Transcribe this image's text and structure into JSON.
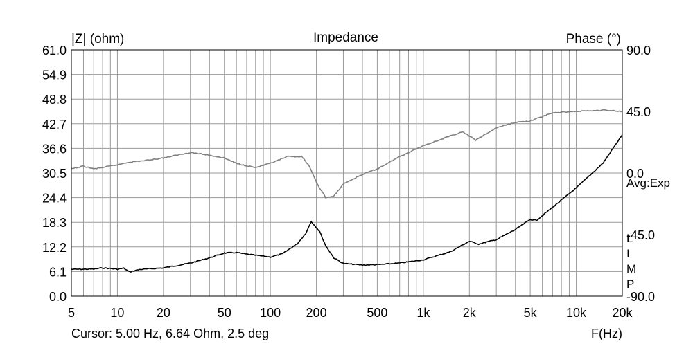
{
  "chart_data": {
    "type": "line",
    "title": "Impedance",
    "ylabel_left": "|Z| (ohm)",
    "ylabel_right": "Phase (°)",
    "xlabel": "F(Hz)",
    "x_scale": "log",
    "xlim": [
      5,
      20000
    ],
    "ylim_left": [
      0.0,
      61.0
    ],
    "ylim_right": [
      -90.0,
      90.0
    ],
    "grid": true,
    "y_ticks_left": [
      "61.0",
      "54.9",
      "48.8",
      "42.7",
      "36.6",
      "30.5",
      "24.4",
      "18.3",
      "12.2",
      "6.1",
      "0.0"
    ],
    "y_ticks_right": [
      "90.0",
      "45.0",
      "0.0",
      "-45.0",
      "-90.0"
    ],
    "x_ticks": [
      {
        "value": 5,
        "label": "5"
      },
      {
        "value": 10,
        "label": "10"
      },
      {
        "value": 20,
        "label": "20"
      },
      {
        "value": 50,
        "label": "50"
      },
      {
        "value": 100,
        "label": "100"
      },
      {
        "value": 200,
        "label": "200"
      },
      {
        "value": 500,
        "label": "500"
      },
      {
        "value": 1000,
        "label": "1k"
      },
      {
        "value": 2000,
        "label": "2k"
      },
      {
        "value": 5000,
        "label": "5k"
      },
      {
        "value": 10000,
        "label": "10k"
      },
      {
        "value": 20000,
        "label": "20k"
      }
    ],
    "series": [
      {
        "axis": "left",
        "color": "#000000",
        "points": [
          [
            5,
            6.64
          ],
          [
            7,
            6.7
          ],
          [
            8,
            7.0
          ],
          [
            10,
            6.7
          ],
          [
            11,
            6.9
          ],
          [
            12,
            6.0
          ],
          [
            14,
            6.6
          ],
          [
            20,
            7.0
          ],
          [
            30,
            8.2
          ],
          [
            40,
            9.5
          ],
          [
            50,
            10.7
          ],
          [
            60,
            10.8
          ],
          [
            70,
            10.4
          ],
          [
            100,
            9.7
          ],
          [
            120,
            10.5
          ],
          [
            150,
            13.0
          ],
          [
            170,
            15.5
          ],
          [
            185,
            18.5
          ],
          [
            195,
            17.5
          ],
          [
            210,
            16.0
          ],
          [
            230,
            12.5
          ],
          [
            260,
            9.5
          ],
          [
            300,
            8.1
          ],
          [
            400,
            7.7
          ],
          [
            500,
            7.8
          ],
          [
            700,
            8.2
          ],
          [
            1000,
            9.0
          ],
          [
            1500,
            11.0
          ],
          [
            2000,
            13.6
          ],
          [
            2300,
            12.9
          ],
          [
            3000,
            14.0
          ],
          [
            4000,
            16.5
          ],
          [
            5000,
            19.0
          ],
          [
            5500,
            18.8
          ],
          [
            7000,
            22.0
          ],
          [
            10000,
            26.8
          ],
          [
            15000,
            33.0
          ],
          [
            20000,
            40.0
          ]
        ]
      },
      {
        "axis": "right",
        "color": "#808080",
        "points": [
          [
            5,
            3
          ],
          [
            6,
            5
          ],
          [
            7,
            3
          ],
          [
            8,
            4
          ],
          [
            10,
            6
          ],
          [
            12,
            8
          ],
          [
            15,
            9
          ],
          [
            20,
            11
          ],
          [
            30,
            15
          ],
          [
            40,
            13
          ],
          [
            50,
            11
          ],
          [
            60,
            7
          ],
          [
            80,
            4
          ],
          [
            100,
            7
          ],
          [
            130,
            12
          ],
          [
            160,
            12
          ],
          [
            180,
            5
          ],
          [
            200,
            -7
          ],
          [
            230,
            -18
          ],
          [
            260,
            -17
          ],
          [
            300,
            -8
          ],
          [
            400,
            -1
          ],
          [
            500,
            3
          ],
          [
            700,
            12
          ],
          [
            1000,
            20
          ],
          [
            1500,
            27
          ],
          [
            1800,
            30
          ],
          [
            2000,
            27
          ],
          [
            2200,
            24
          ],
          [
            3000,
            33
          ],
          [
            4000,
            37
          ],
          [
            5000,
            38
          ],
          [
            7000,
            44
          ],
          [
            10000,
            45
          ],
          [
            15000,
            46
          ],
          [
            20000,
            45
          ]
        ]
      }
    ],
    "legend_text": [
      "Avg:Exp",
      "L",
      "I",
      "M",
      "P"
    ],
    "cursor_readout": "Cursor: 5.00 Hz, 6.64 Ohm, 2.5 deg"
  }
}
